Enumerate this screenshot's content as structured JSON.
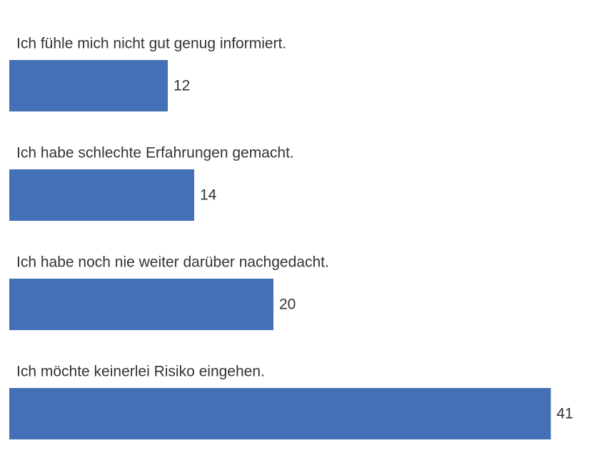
{
  "chart_data": {
    "type": "hbar",
    "categories": [
      "Ich fühle mich nicht gut genug informiert.",
      "Ich habe schlechte Erfahrungen gemacht.",
      "Ich habe noch nie weiter darüber nachgedacht.",
      "Ich möchte keinerlei Risiko eingehen."
    ],
    "values": [
      12,
      14,
      20,
      41
    ],
    "color": "#4470b5"
  }
}
